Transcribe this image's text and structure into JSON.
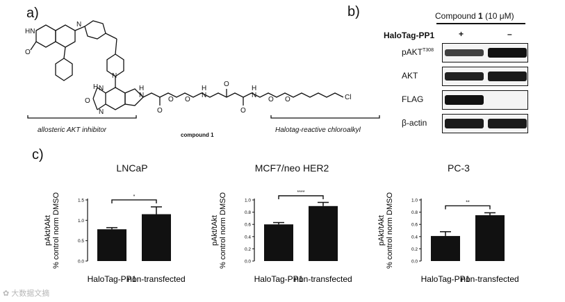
{
  "panels": {
    "a": {
      "label": "a)",
      "compound_label": "compound 1",
      "left_bracket_label": "allosteric AKT inhibitor",
      "right_bracket_label": "Halotag-reactive chloroalkyl",
      "atoms": {
        "hn": "HN",
        "o1": "O",
        "n1": "N",
        "n_pip": "N",
        "n_bim1": "N",
        "n_bim2": "N",
        "o_bim": "O",
        "hn_bim": "H",
        "h_amide1": "H",
        "n_amide1": "N",
        "o_amide1": "O",
        "o_ether1": "O",
        "o_ether2": "O",
        "h_amide2": "H",
        "n_amide2": "N",
        "o_succ1": "O",
        "o_succ2": "O",
        "h_amide3": "H",
        "n_amide3": "N",
        "o_ether3": "O",
        "o_ether4": "O",
        "cl": "Cl"
      }
    },
    "b": {
      "label": "b)",
      "header_prefix": "Compound ",
      "header_bold": "1",
      "header_suffix": " (10 μM)",
      "row_label": "HaloTag-PP1",
      "lane_marks": [
        "+",
        "–"
      ],
      "blots": [
        {
          "label": "pAKT",
          "sup": "T308",
          "bands": [
            0.55,
            1.0
          ]
        },
        {
          "label": "AKT",
          "sup": "",
          "bands": [
            0.85,
            0.9
          ]
        },
        {
          "label": "FLAG",
          "sup": "",
          "bands": [
            1.0,
            0.0
          ]
        },
        {
          "label": "β-actin",
          "sup": "",
          "bands": [
            0.9,
            0.9
          ]
        }
      ]
    },
    "c": {
      "label": "c)"
    }
  },
  "chart_data": [
    {
      "type": "bar",
      "title": "LNCaP",
      "ylabel": "pAkt/tAkt\n% control norm DMSO",
      "categories": [
        "HaloTag-PP1",
        "non-transfected"
      ],
      "values": [
        0.78,
        1.15
      ],
      "errors": [
        0.04,
        0.18
      ],
      "ylim": [
        0,
        1.5
      ],
      "yticks": [
        "0.0",
        "0.5",
        "1.0",
        "1.5"
      ],
      "significance": "*"
    },
    {
      "type": "bar",
      "title": "MCF7/neo HER2",
      "ylabel": "pAkt/tAkt\n% control norm DMSO",
      "categories": [
        "HaloTag-PP1",
        "non-transfected"
      ],
      "values": [
        0.6,
        0.9
      ],
      "errors": [
        0.03,
        0.06
      ],
      "ylim": [
        0,
        1.0
      ],
      "yticks": [
        "0.0",
        "0.2",
        "0.4",
        "0.6",
        "0.8",
        "1.0"
      ],
      "significance": "****"
    },
    {
      "type": "bar",
      "title": "PC-3",
      "ylabel": "pAkt/tAkt\n% control norm DMSO",
      "categories": [
        "HaloTag-PP1",
        "non-transfected"
      ],
      "values": [
        0.41,
        0.75
      ],
      "errors": [
        0.07,
        0.04
      ],
      "ylim": [
        0,
        1.0
      ],
      "yticks": [
        "0.0",
        "0.2",
        "0.4",
        "0.6",
        "0.8",
        "1.0"
      ],
      "significance": "**"
    }
  ],
  "watermark": "大数据文摘"
}
